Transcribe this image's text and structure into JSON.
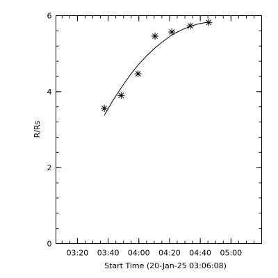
{
  "chart_data": {
    "type": "scatter",
    "xlabel": "Start Time (20-Jan-25 03:06:08)",
    "ylabel": "R/Rs",
    "x_tick_labels": [
      "03:20",
      "03:40",
      "04:00",
      "04:20",
      "04:40",
      "05:00"
    ],
    "x_tick_values": [
      14,
      34,
      54,
      74,
      94,
      114
    ],
    "y_ticks": [
      0,
      2,
      4,
      6
    ],
    "xlim": [
      0,
      134
    ],
    "ylim": [
      0,
      6
    ],
    "marker": "asterisk",
    "points": {
      "x": [
        31.5,
        42.5,
        53.5,
        64.5,
        75.5,
        87.5,
        99.5
      ],
      "y": [
        3.56,
        3.9,
        4.47,
        5.46,
        5.57,
        5.73,
        5.82
      ]
    },
    "fit_curve": {
      "x": [
        31.5,
        37,
        42.5,
        48,
        53.5,
        59,
        64.5,
        70,
        75.5,
        81.5,
        87.5,
        93.5,
        99.5
      ],
      "y": [
        3.38,
        3.76,
        4.1,
        4.42,
        4.7,
        4.94,
        5.15,
        5.33,
        5.49,
        5.62,
        5.72,
        5.79,
        5.83
      ]
    }
  }
}
